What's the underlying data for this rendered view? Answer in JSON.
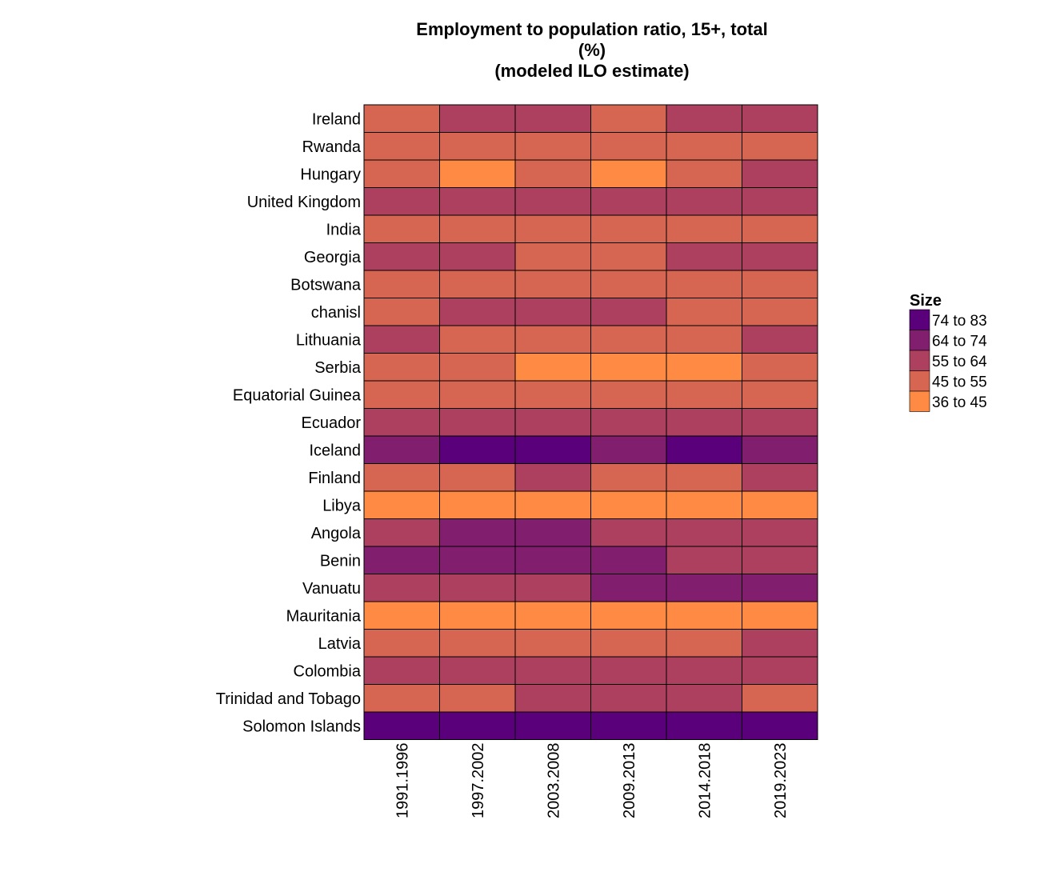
{
  "chart_data": {
    "type": "heatmap",
    "title_lines": [
      "Employment to population ratio, 15+, total",
      "(%)",
      "(modeled ILO estimate)"
    ],
    "x": [
      "1991.1996",
      "1997.2002",
      "2003.2008",
      "2009.2013",
      "2014.2018",
      "2019.2023"
    ],
    "y": [
      "Ireland",
      "Rwanda",
      "Hungary",
      "United Kingdom",
      "India",
      "Georgia",
      "Botswana",
      "chanisl",
      "Lithuania",
      "Serbia",
      "Equatorial Guinea",
      "Ecuador",
      "Iceland",
      "Finland",
      "Libya",
      "Angola",
      "Benin",
      "Vanuatu",
      "Mauritania",
      "Latvia",
      "Colombia",
      "Trinidad and Tobago",
      "Solomon Islands"
    ],
    "legend": {
      "title": "Size",
      "placement": "right",
      "bins": [
        {
          "label": "74 to 83",
          "color": "#5a007b"
        },
        {
          "label": "64 to 74",
          "color": "#821e6e"
        },
        {
          "label": "55 to 64",
          "color": "#ae405f"
        },
        {
          "label": "45 to 55",
          "color": "#d66651"
        },
        {
          "label": "36 to 45",
          "color": "#ff8a43"
        }
      ]
    },
    "cells": [
      [
        "45 to 55",
        "55 to 64",
        "55 to 64",
        "45 to 55",
        "55 to 64",
        "55 to 64"
      ],
      [
        "45 to 55",
        "45 to 55",
        "45 to 55",
        "45 to 55",
        "45 to 55",
        "45 to 55"
      ],
      [
        "45 to 55",
        "36 to 45",
        "45 to 55",
        "36 to 45",
        "45 to 55",
        "55 to 64"
      ],
      [
        "55 to 64",
        "55 to 64",
        "55 to 64",
        "55 to 64",
        "55 to 64",
        "55 to 64"
      ],
      [
        "45 to 55",
        "45 to 55",
        "45 to 55",
        "45 to 55",
        "45 to 55",
        "45 to 55"
      ],
      [
        "55 to 64",
        "55 to 64",
        "45 to 55",
        "45 to 55",
        "55 to 64",
        "55 to 64"
      ],
      [
        "45 to 55",
        "45 to 55",
        "45 to 55",
        "45 to 55",
        "45 to 55",
        "45 to 55"
      ],
      [
        "45 to 55",
        "55 to 64",
        "55 to 64",
        "55 to 64",
        "45 to 55",
        "45 to 55"
      ],
      [
        "55 to 64",
        "45 to 55",
        "45 to 55",
        "45 to 55",
        "45 to 55",
        "55 to 64"
      ],
      [
        "45 to 55",
        "45 to 55",
        "36 to 45",
        "36 to 45",
        "36 to 45",
        "45 to 55"
      ],
      [
        "45 to 55",
        "45 to 55",
        "45 to 55",
        "45 to 55",
        "45 to 55",
        "45 to 55"
      ],
      [
        "55 to 64",
        "55 to 64",
        "55 to 64",
        "55 to 64",
        "55 to 64",
        "55 to 64"
      ],
      [
        "64 to 74",
        "74 to 83",
        "74 to 83",
        "64 to 74",
        "74 to 83",
        "64 to 74"
      ],
      [
        "45 to 55",
        "45 to 55",
        "55 to 64",
        "45 to 55",
        "45 to 55",
        "55 to 64"
      ],
      [
        "36 to 45",
        "36 to 45",
        "36 to 45",
        "36 to 45",
        "36 to 45",
        "36 to 45"
      ],
      [
        "55 to 64",
        "64 to 74",
        "64 to 74",
        "55 to 64",
        "55 to 64",
        "55 to 64"
      ],
      [
        "64 to 74",
        "64 to 74",
        "64 to 74",
        "64 to 74",
        "55 to 64",
        "55 to 64"
      ],
      [
        "55 to 64",
        "55 to 64",
        "55 to 64",
        "64 to 74",
        "64 to 74",
        "64 to 74"
      ],
      [
        "36 to 45",
        "36 to 45",
        "36 to 45",
        "36 to 45",
        "36 to 45",
        "36 to 45"
      ],
      [
        "45 to 55",
        "45 to 55",
        "45 to 55",
        "45 to 55",
        "45 to 55",
        "55 to 64"
      ],
      [
        "55 to 64",
        "55 to 64",
        "55 to 64",
        "55 to 64",
        "55 to 64",
        "55 to 64"
      ],
      [
        "45 to 55",
        "45 to 55",
        "55 to 64",
        "55 to 64",
        "55 to 64",
        "45 to 55"
      ],
      [
        "74 to 83",
        "74 to 83",
        "74 to 83",
        "74 to 83",
        "74 to 83",
        "74 to 83"
      ]
    ]
  }
}
